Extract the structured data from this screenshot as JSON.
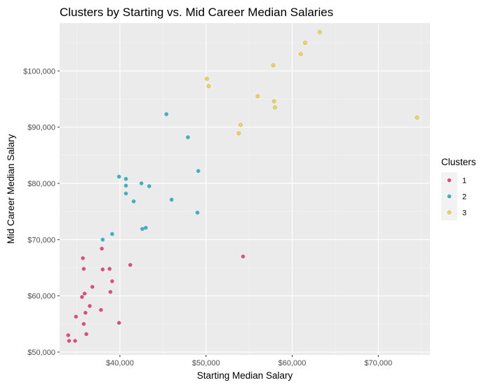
{
  "chart_data": {
    "type": "scatter",
    "title": "Clusters by Starting vs. Mid Career Median Salaries",
    "xlabel": "Starting Median Salary",
    "ylabel": "Mid Career Median Salary",
    "xlim": [
      33000,
      76000
    ],
    "ylim": [
      49500,
      108500
    ],
    "x_ticks": [
      40000,
      50000,
      60000,
      70000
    ],
    "x_tick_labels": [
      "$40,000",
      "$50,000",
      "$60,000",
      "$70,000"
    ],
    "y_ticks": [
      50000,
      60000,
      70000,
      80000,
      90000,
      100000
    ],
    "y_tick_labels": [
      "$50,000",
      "$60,000",
      "$70,000",
      "$80,000",
      "$90,000",
      "$100,000"
    ],
    "grid": true,
    "legend_position": "right",
    "legend": {
      "title": "Clusters",
      "entries": [
        {
          "label": "1",
          "color": "#e8467c"
        },
        {
          "label": "2",
          "color": "#2fb6c9"
        },
        {
          "label": "3",
          "color": "#f5d53a"
        }
      ]
    },
    "series": [
      {
        "name": "1",
        "color": "#e8467c",
        "points": [
          [
            34000,
            53000
          ],
          [
            34100,
            52000
          ],
          [
            34800,
            52000
          ],
          [
            34900,
            56300
          ],
          [
            35600,
            59800
          ],
          [
            35700,
            66700
          ],
          [
            35800,
            64800
          ],
          [
            35800,
            55000
          ],
          [
            35900,
            60400
          ],
          [
            36000,
            57000
          ],
          [
            36100,
            53200
          ],
          [
            36500,
            58200
          ],
          [
            36800,
            61600
          ],
          [
            37800,
            57500
          ],
          [
            37900,
            68400
          ],
          [
            38000,
            64700
          ],
          [
            38800,
            64800
          ],
          [
            38900,
            60700
          ],
          [
            39100,
            62600
          ],
          [
            39900,
            55200
          ],
          [
            41200,
            65500
          ],
          [
            54300,
            67000
          ]
        ]
      },
      {
        "name": "2",
        "color": "#2fb6c9",
        "points": [
          [
            38000,
            70000
          ],
          [
            39100,
            71000
          ],
          [
            39900,
            81200
          ],
          [
            40700,
            80800
          ],
          [
            40700,
            79600
          ],
          [
            40700,
            78200
          ],
          [
            41600,
            76800
          ],
          [
            42500,
            80000
          ],
          [
            42600,
            71900
          ],
          [
            43000,
            72100
          ],
          [
            43400,
            79500
          ],
          [
            45400,
            92300
          ],
          [
            46000,
            77100
          ],
          [
            47900,
            88200
          ],
          [
            49000,
            74800
          ],
          [
            49100,
            82200
          ]
        ]
      },
      {
        "name": "3",
        "color": "#f5d53a",
        "points": [
          [
            50100,
            98600
          ],
          [
            50300,
            97300
          ],
          [
            53800,
            88900
          ],
          [
            54000,
            90400
          ],
          [
            56000,
            95500
          ],
          [
            57800,
            101000
          ],
          [
            57900,
            94600
          ],
          [
            58000,
            93500
          ],
          [
            61000,
            103000
          ],
          [
            61500,
            105000
          ],
          [
            63200,
            106900
          ],
          [
            74500,
            91700
          ]
        ]
      }
    ]
  }
}
